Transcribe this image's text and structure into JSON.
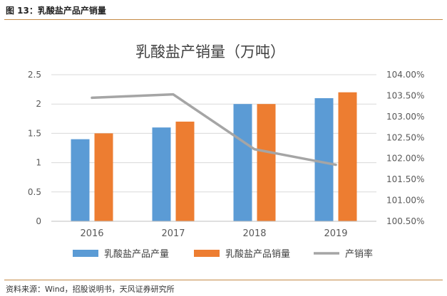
{
  "figure": {
    "label": "图 13：乳酸盐产品产销量",
    "source": "资料来源：Wind，招股说明书，天风证券研究所"
  },
  "colors": {
    "production": "#5b9bd5",
    "sales": "#ed7d31",
    "rate": "#a5a5a5",
    "rule": "#c48a46"
  },
  "chart_data": {
    "type": "bar",
    "title": "乳酸盐产销量（万吨）",
    "categories": [
      "2016",
      "2017",
      "2018",
      "2019"
    ],
    "series": [
      {
        "name": "乳酸盐产品产量",
        "type": "bar",
        "axis": "left",
        "values": [
          1.4,
          1.6,
          2.0,
          2.1
        ]
      },
      {
        "name": "乳酸盐产品销量",
        "type": "bar",
        "axis": "left",
        "values": [
          1.5,
          1.7,
          2.0,
          2.2
        ]
      },
      {
        "name": "产销率",
        "type": "line",
        "axis": "right",
        "values": [
          103.45,
          103.53,
          102.22,
          101.85
        ]
      }
    ],
    "ylim": [
      0,
      2.5
    ],
    "yticks": [
      "0",
      "0.5",
      "1",
      "1.5",
      "2",
      "2.5"
    ],
    "y2lim": [
      100.5,
      104.0
    ],
    "y2ticks": [
      "100.50%",
      "101.00%",
      "101.50%",
      "102.00%",
      "102.50%",
      "103.00%",
      "103.50%",
      "104.00%"
    ],
    "grid": true,
    "legend": "bottom"
  }
}
